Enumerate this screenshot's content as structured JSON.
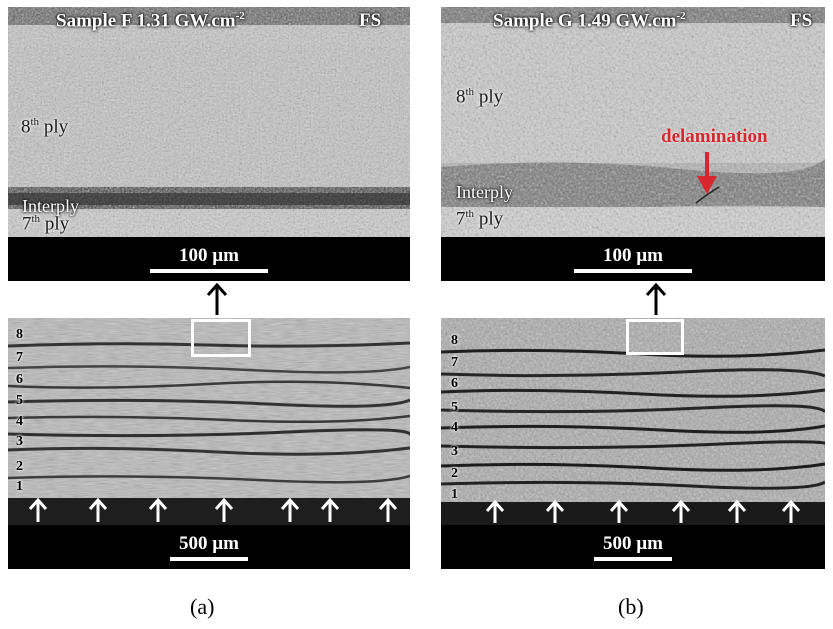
{
  "panel_a": {
    "header_sample": "Sample F  1.31 GW.cm",
    "header_exp": "-2",
    "header_fs": "FS",
    "ply_upper_num": "8",
    "ply_upper_sup": "th",
    "ply_upper_word": " ply",
    "interply": "Interply",
    "ply_lower_num": "7",
    "ply_lower_sup": "th",
    "ply_lower_word": " ply",
    "scale_top": "100 µm",
    "scale_bottom": "500 µm",
    "ply_numbers": [
      "8",
      "7",
      "6",
      "5",
      "4",
      "3",
      "2",
      "1"
    ],
    "caption": "(a)"
  },
  "panel_b": {
    "header_sample": "Sample G  1.49 GW.cm",
    "header_exp": "-2",
    "header_fs": "FS",
    "ply_upper_num": "8",
    "ply_upper_sup": "th",
    "ply_upper_word": " ply",
    "delamination": "delamination",
    "interply": "Interply",
    "ply_lower_num": "7",
    "ply_lower_sup": "th",
    "ply_lower_word": " ply",
    "scale_top": "100 µm",
    "scale_bottom": "500 µm",
    "ply_numbers": [
      "8",
      "7",
      "6",
      "5",
      "4",
      "3",
      "2",
      "1"
    ],
    "caption": "(b)"
  },
  "colors": {
    "delamination": "#d7262e",
    "scale_bar_bg": "#000000"
  }
}
